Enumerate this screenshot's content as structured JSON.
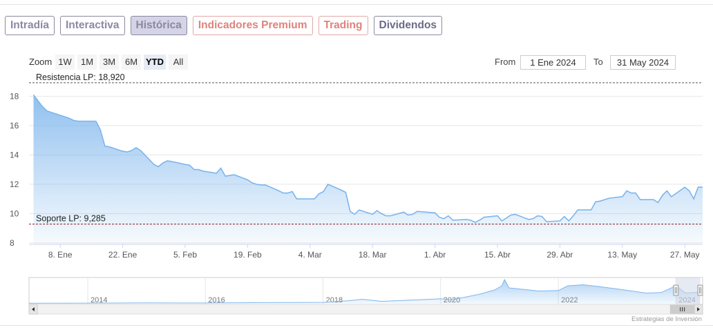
{
  "tabs": [
    {
      "label": "Intradía",
      "style": "neutral"
    },
    {
      "label": "Interactiva",
      "style": "neutral"
    },
    {
      "label": "Histórica",
      "style": "active"
    },
    {
      "label": "Indicadores Premium",
      "style": "premium"
    },
    {
      "label": "Trading",
      "style": "premium"
    },
    {
      "label": "Dividendos",
      "style": "dark"
    }
  ],
  "zoom": {
    "label": "Zoom",
    "buttons": [
      "1W",
      "1M",
      "3M",
      "6M",
      "YTD",
      "All"
    ],
    "selected": "YTD"
  },
  "range": {
    "from_label": "From",
    "from_value": "1 Ene 2024",
    "to_label": "To",
    "to_value": "31 May 2024"
  },
  "credits": "Estrategias de Inversión",
  "colors": {
    "line": "#7cb5ec",
    "resistance": "#555555",
    "support": "#8b1a1a",
    "navigator_mask": "#d2d9e8"
  },
  "chart_data": {
    "type": "area",
    "x_range": [
      "2024-01-01",
      "2024-05-31"
    ],
    "ylim": [
      7.9,
      19.1
    ],
    "yticks": [
      8,
      10,
      12,
      14,
      16,
      18
    ],
    "xticks": [
      {
        "date": "2024-01-08",
        "label": "8. Ene"
      },
      {
        "date": "2024-01-22",
        "label": "22. Ene"
      },
      {
        "date": "2024-02-05",
        "label": "5. Feb"
      },
      {
        "date": "2024-02-19",
        "label": "19. Feb"
      },
      {
        "date": "2024-03-04",
        "label": "4. Mar"
      },
      {
        "date": "2024-03-18",
        "label": "18. Mar"
      },
      {
        "date": "2024-04-01",
        "label": "1. Abr"
      },
      {
        "date": "2024-04-15",
        "label": "15. Abr"
      },
      {
        "date": "2024-04-29",
        "label": "29. Abr"
      },
      {
        "date": "2024-05-13",
        "label": "13. May"
      },
      {
        "date": "2024-05-27",
        "label": "27. May"
      }
    ],
    "grid": true,
    "plot_lines": [
      {
        "label": "Resistencia LP: 18,920",
        "value": 18.92,
        "style": "resistance"
      },
      {
        "label": "Soporte LP: 9,285",
        "value": 9.285,
        "style": "support"
      }
    ],
    "series": [
      {
        "values": [
          [
            "2024-01-02",
            18.1
          ],
          [
            "2024-01-03",
            17.7
          ],
          [
            "2024-01-04",
            17.3
          ],
          [
            "2024-01-05",
            17.0
          ],
          [
            "2024-01-08",
            16.7
          ],
          [
            "2024-01-09",
            16.6
          ],
          [
            "2024-01-10",
            16.5
          ],
          [
            "2024-01-11",
            16.35
          ],
          [
            "2024-01-12",
            16.3
          ],
          [
            "2024-01-15",
            16.3
          ],
          [
            "2024-01-16",
            16.3
          ],
          [
            "2024-01-17",
            15.7
          ],
          [
            "2024-01-18",
            14.6
          ],
          [
            "2024-01-19",
            14.55
          ],
          [
            "2024-01-22",
            14.25
          ],
          [
            "2024-01-23",
            14.2
          ],
          [
            "2024-01-24",
            14.3
          ],
          [
            "2024-01-25",
            14.5
          ],
          [
            "2024-01-26",
            14.3
          ],
          [
            "2024-01-29",
            13.35
          ],
          [
            "2024-01-30",
            13.2
          ],
          [
            "2024-01-31",
            13.45
          ],
          [
            "2024-02-01",
            13.6
          ],
          [
            "2024-02-02",
            13.55
          ],
          [
            "2024-02-05",
            13.35
          ],
          [
            "2024-02-06",
            13.3
          ],
          [
            "2024-02-07",
            13.0
          ],
          [
            "2024-02-08",
            13.0
          ],
          [
            "2024-02-09",
            12.9
          ],
          [
            "2024-02-12",
            12.75
          ],
          [
            "2024-02-13",
            13.1
          ],
          [
            "2024-02-14",
            12.55
          ],
          [
            "2024-02-15",
            12.6
          ],
          [
            "2024-02-16",
            12.65
          ],
          [
            "2024-02-19",
            12.3
          ],
          [
            "2024-02-20",
            12.1
          ],
          [
            "2024-02-21",
            12.0
          ],
          [
            "2024-02-22",
            11.95
          ],
          [
            "2024-02-23",
            11.95
          ],
          [
            "2024-02-26",
            11.55
          ],
          [
            "2024-02-27",
            11.4
          ],
          [
            "2024-02-28",
            11.4
          ],
          [
            "2024-02-29",
            11.5
          ],
          [
            "2024-03-01",
            11.0
          ],
          [
            "2024-03-04",
            11.0
          ],
          [
            "2024-03-05",
            11.0
          ],
          [
            "2024-03-06",
            11.35
          ],
          [
            "2024-03-07",
            11.5
          ],
          [
            "2024-03-08",
            12.0
          ],
          [
            "2024-03-11",
            11.6
          ],
          [
            "2024-03-12",
            11.45
          ],
          [
            "2024-03-13",
            10.15
          ],
          [
            "2024-03-14",
            9.95
          ],
          [
            "2024-03-15",
            10.25
          ],
          [
            "2024-03-18",
            9.95
          ],
          [
            "2024-03-19",
            10.2
          ],
          [
            "2024-03-20",
            10.0
          ],
          [
            "2024-03-21",
            9.85
          ],
          [
            "2024-03-22",
            9.85
          ],
          [
            "2024-03-25",
            10.1
          ],
          [
            "2024-03-26",
            9.9
          ],
          [
            "2024-03-27",
            9.95
          ],
          [
            "2024-03-28",
            10.15
          ],
          [
            "2024-04-01",
            10.05
          ],
          [
            "2024-04-02",
            9.75
          ],
          [
            "2024-04-03",
            9.65
          ],
          [
            "2024-04-04",
            9.85
          ],
          [
            "2024-04-05",
            9.55
          ],
          [
            "2024-04-08",
            9.6
          ],
          [
            "2024-04-09",
            9.55
          ],
          [
            "2024-04-10",
            9.4
          ],
          [
            "2024-04-11",
            9.55
          ],
          [
            "2024-04-12",
            9.75
          ],
          [
            "2024-04-15",
            9.85
          ],
          [
            "2024-04-16",
            9.5
          ],
          [
            "2024-04-17",
            9.7
          ],
          [
            "2024-04-18",
            9.9
          ],
          [
            "2024-04-19",
            9.95
          ],
          [
            "2024-04-22",
            9.6
          ],
          [
            "2024-04-23",
            9.65
          ],
          [
            "2024-04-24",
            9.85
          ],
          [
            "2024-04-25",
            9.8
          ],
          [
            "2024-04-26",
            9.45
          ],
          [
            "2024-04-29",
            9.5
          ],
          [
            "2024-04-30",
            9.8
          ],
          [
            "2024-05-01",
            9.5
          ],
          [
            "2024-05-02",
            9.85
          ],
          [
            "2024-05-03",
            10.25
          ],
          [
            "2024-05-06",
            10.25
          ],
          [
            "2024-05-07",
            10.8
          ],
          [
            "2024-05-08",
            10.85
          ],
          [
            "2024-05-09",
            10.95
          ],
          [
            "2024-05-10",
            11.05
          ],
          [
            "2024-05-13",
            11.15
          ],
          [
            "2024-05-14",
            11.55
          ],
          [
            "2024-05-15",
            11.4
          ],
          [
            "2024-05-16",
            11.4
          ],
          [
            "2024-05-17",
            10.95
          ],
          [
            "2024-05-20",
            10.95
          ],
          [
            "2024-05-21",
            10.75
          ],
          [
            "2024-05-22",
            11.25
          ],
          [
            "2024-05-23",
            11.55
          ],
          [
            "2024-05-24",
            11.15
          ],
          [
            "2024-05-27",
            11.8
          ],
          [
            "2024-05-28",
            11.55
          ],
          [
            "2024-05-29",
            11.0
          ],
          [
            "2024-05-30",
            11.8
          ],
          [
            "2024-05-31",
            11.8
          ]
        ]
      }
    ],
    "navigator": {
      "year_labels": [
        "2014",
        "2016",
        "2018",
        "2020",
        "2022",
        "2024"
      ],
      "x_range": [
        "2013-01-01",
        "2024-06-15"
      ],
      "ylim": [
        0,
        26
      ],
      "selected_range": [
        "2024-01-01",
        "2024-05-31"
      ],
      "values": [
        [
          "2013-01-01",
          1.2
        ],
        [
          "2014-01-01",
          1.3
        ],
        [
          "2015-01-01",
          1.5
        ],
        [
          "2016-01-01",
          1.4
        ],
        [
          "2017-01-01",
          1.7
        ],
        [
          "2018-01-01",
          2.0
        ],
        [
          "2018-06-01",
          3.5
        ],
        [
          "2018-09-01",
          5.0
        ],
        [
          "2019-01-01",
          3.0
        ],
        [
          "2019-06-01",
          4.0
        ],
        [
          "2020-01-01",
          5.5
        ],
        [
          "2020-03-01",
          4.5
        ],
        [
          "2020-06-01",
          7.0
        ],
        [
          "2020-09-01",
          10.0
        ],
        [
          "2020-12-01",
          14.0
        ],
        [
          "2021-01-15",
          18.0
        ],
        [
          "2021-02-01",
          24.0
        ],
        [
          "2021-03-01",
          16.0
        ],
        [
          "2021-06-01",
          14.5
        ],
        [
          "2021-09-01",
          13.0
        ],
        [
          "2022-01-01",
          13.5
        ],
        [
          "2022-03-01",
          18.0
        ],
        [
          "2022-06-01",
          19.0
        ],
        [
          "2022-09-01",
          17.5
        ],
        [
          "2023-01-01",
          15.0
        ],
        [
          "2023-04-01",
          13.0
        ],
        [
          "2023-07-01",
          11.0
        ],
        [
          "2023-10-01",
          11.5
        ],
        [
          "2024-01-01",
          18.1
        ],
        [
          "2024-03-01",
          11.0
        ],
        [
          "2024-05-31",
          11.8
        ]
      ]
    }
  }
}
